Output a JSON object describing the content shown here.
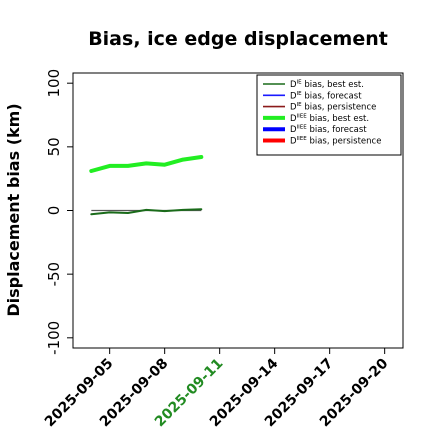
{
  "chart_data": {
    "type": "line",
    "title": "Bias, ice edge displacement",
    "xlabel": "",
    "ylabel": "Displacement bias (km)",
    "ylim": [
      -108,
      108
    ],
    "yticks": [
      100,
      50,
      0,
      -50,
      -100
    ],
    "xlim": [
      "2025-09-03",
      "2025-09-21"
    ],
    "xticks": [
      "2025-09-05",
      "2025-09-08",
      "2025-09-11",
      "2025-09-14",
      "2025-09-17",
      "2025-09-20"
    ],
    "highlight_tick": "2025-09-11",
    "highlight_color": "#228b22",
    "grid": false,
    "legend_position": "top-right",
    "series": [
      {
        "name": "D^IE bias, best est.",
        "legend_main": "D",
        "legend_sup": "IE",
        "legend_rest": " bias, best est.",
        "color": "#1a6b1a",
        "thick": false,
        "x": [
          "2025-09-04",
          "2025-09-05",
          "2025-09-06",
          "2025-09-07",
          "2025-09-08",
          "2025-09-09",
          "2025-09-10"
        ],
        "y": [
          -3,
          -1.5,
          -2,
          0.5,
          -0.5,
          0.5,
          1
        ]
      },
      {
        "name": "D^IE bias, forecast",
        "legend_main": "D",
        "legend_sup": "IE",
        "legend_rest": " bias, forecast",
        "color": "#1a1aff",
        "thick": false,
        "x": [],
        "y": []
      },
      {
        "name": "D^IE bias, persistence",
        "legend_main": "D",
        "legend_sup": "IE",
        "legend_rest": " bias, persistence",
        "color": "#8b1a1a",
        "thick": false,
        "x": [],
        "y": []
      },
      {
        "name": "D^IIEE bias, best est.",
        "legend_main": "D",
        "legend_sup": "IIEE",
        "legend_rest": " bias, best est.",
        "color": "#22ee22",
        "thick": true,
        "x": [
          "2025-09-04",
          "2025-09-05",
          "2025-09-06",
          "2025-09-07",
          "2025-09-08",
          "2025-09-09",
          "2025-09-10"
        ],
        "y": [
          31,
          35,
          35,
          37,
          36,
          40,
          42
        ]
      },
      {
        "name": "D^IIEE bias, forecast",
        "legend_main": "D",
        "legend_sup": "IIEE",
        "legend_rest": " bias, forecast",
        "color": "#0000ff",
        "thick": true,
        "x": [],
        "y": []
      },
      {
        "name": "D^IIEE bias, persistence",
        "legend_main": "D",
        "legend_sup": "IIEE",
        "legend_rest": " bias, persistence",
        "color": "#ff0000",
        "thick": true,
        "x": [],
        "y": []
      }
    ],
    "reference_line": {
      "x": [
        "2025-09-04",
        "2025-09-10"
      ],
      "y": [
        0,
        0
      ],
      "color": "#555555"
    }
  }
}
